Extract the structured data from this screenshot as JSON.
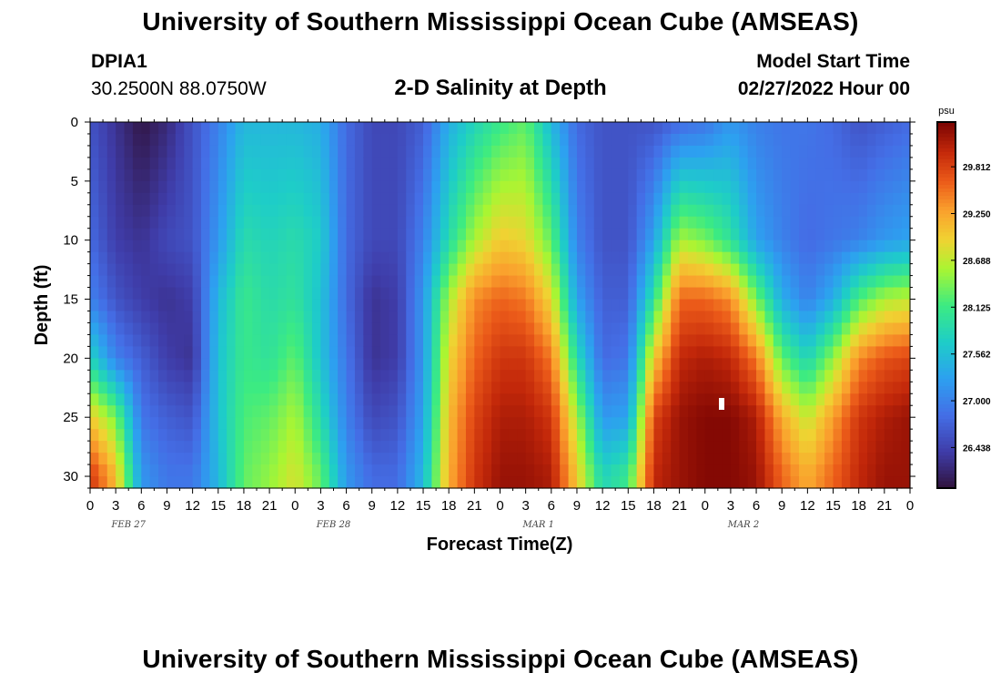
{
  "header": {
    "title": "University of Southern Mississippi Ocean Cube (AMSEAS)",
    "station_id": "DPIA1",
    "station_coords": "30.2500N  88.0750W",
    "plot_title": "2-D Salinity at Depth",
    "model_label": "Model Start Time",
    "model_date": "02/27/2022 Hour 00"
  },
  "footer": {
    "title": "University of Southern Mississippi Ocean Cube (AMSEAS)"
  },
  "chart_data": {
    "type": "heatmap",
    "title": "2-D Salinity at Depth",
    "xlabel": "Forecast Time(Z)",
    "ylabel": "Depth (ft)",
    "x_range_hours": [
      0,
      96
    ],
    "x_tick_labels": [
      "0",
      "3",
      "6",
      "9",
      "12",
      "15",
      "18",
      "21",
      "0",
      "3",
      "6",
      "9",
      "12",
      "15",
      "18",
      "21",
      "0",
      "3",
      "6",
      "9",
      "12",
      "15",
      "18",
      "21",
      "0",
      "3",
      "6",
      "9",
      "12",
      "15",
      "18",
      "21",
      "0"
    ],
    "day_labels": [
      "FEB 27",
      "FEB 28",
      "MAR 1",
      "MAR 2"
    ],
    "ylim": [
      0,
      31
    ],
    "y_ticks": [
      0,
      5,
      10,
      15,
      20,
      25,
      30
    ],
    "y_inverted": true,
    "colorbar": {
      "unit": "psu",
      "min": 25.95,
      "max": 30.35,
      "ticks": [
        26.438,
        27.0,
        27.562,
        28.125,
        28.688,
        29.25,
        29.812
      ],
      "tick_labels": [
        "26.438",
        "27.000",
        "27.562",
        "28.125",
        "28.688",
        "29.250",
        "29.812"
      ]
    },
    "salinity_profiles": {
      "columns_hours": [
        0,
        3,
        6,
        9,
        12,
        15,
        18,
        21,
        24,
        27,
        30,
        33,
        36,
        39,
        42,
        45,
        48,
        51,
        54,
        57,
        60,
        63,
        66,
        69,
        72,
        75,
        78,
        81,
        84,
        87,
        90,
        93,
        96
      ],
      "depths_ft": [
        0,
        10,
        15,
        20,
        25,
        30
      ],
      "values_psu": [
        [
          26.6,
          26.8,
          27.0,
          27.8,
          29.0,
          29.9
        ],
        [
          26.3,
          26.4,
          26.6,
          27.0,
          28.4,
          29.1
        ],
        [
          26.0,
          26.3,
          26.4,
          26.7,
          26.9,
          27.2
        ],
        [
          26.2,
          26.5,
          26.3,
          26.4,
          26.7,
          26.9
        ],
        [
          26.6,
          26.6,
          26.4,
          26.3,
          26.6,
          26.9
        ],
        [
          27.0,
          27.2,
          27.5,
          27.6,
          27.6,
          27.5
        ],
        [
          27.5,
          27.9,
          28.1,
          28.1,
          28.2,
          28.3
        ],
        [
          27.5,
          27.8,
          27.9,
          28.0,
          28.3,
          28.5
        ],
        [
          27.5,
          27.9,
          28.0,
          28.3,
          28.6,
          28.8
        ],
        [
          27.4,
          27.7,
          27.6,
          27.6,
          27.9,
          28.3
        ],
        [
          26.8,
          26.8,
          26.8,
          26.9,
          27.0,
          27.2
        ],
        [
          26.5,
          26.5,
          26.3,
          26.3,
          26.5,
          26.8
        ],
        [
          26.5,
          26.5,
          26.4,
          26.4,
          26.6,
          26.8
        ],
        [
          26.7,
          27.0,
          27.2,
          27.2,
          27.3,
          27.5
        ],
        [
          27.4,
          27.9,
          28.6,
          28.9,
          29.1,
          29.2
        ],
        [
          27.8,
          28.6,
          29.4,
          29.6,
          29.8,
          29.9
        ],
        [
          28.1,
          29.0,
          29.6,
          29.9,
          30.1,
          30.2
        ],
        [
          28.3,
          28.9,
          29.5,
          29.9,
          30.1,
          30.2
        ],
        [
          27.5,
          28.3,
          28.9,
          29.5,
          29.9,
          30.1
        ],
        [
          26.8,
          27.0,
          27.3,
          27.9,
          28.6,
          29.0
        ],
        [
          26.6,
          26.6,
          26.7,
          26.8,
          27.2,
          27.8
        ],
        [
          26.6,
          26.6,
          26.7,
          26.9,
          27.3,
          28.1
        ],
        [
          26.6,
          27.3,
          28.0,
          29.0,
          29.8,
          30.0
        ],
        [
          26.8,
          28.6,
          29.6,
          30.0,
          30.2,
          30.2
        ],
        [
          26.9,
          28.4,
          29.6,
          30.1,
          30.3,
          30.3
        ],
        [
          27.2,
          28.0,
          29.4,
          30.0,
          30.3,
          30.3
        ],
        [
          27.0,
          27.3,
          28.4,
          29.5,
          30.1,
          30.2
        ],
        [
          26.9,
          27.0,
          27.4,
          28.3,
          29.2,
          29.6
        ],
        [
          26.9,
          26.8,
          27.0,
          27.8,
          28.7,
          29.2
        ],
        [
          26.8,
          26.9,
          27.4,
          28.5,
          29.3,
          29.6
        ],
        [
          26.6,
          27.0,
          28.2,
          29.4,
          29.9,
          30.0
        ],
        [
          26.7,
          27.2,
          28.6,
          29.7,
          30.1,
          30.2
        ],
        [
          26.8,
          27.3,
          28.7,
          29.8,
          30.2,
          30.2
        ]
      ]
    }
  }
}
